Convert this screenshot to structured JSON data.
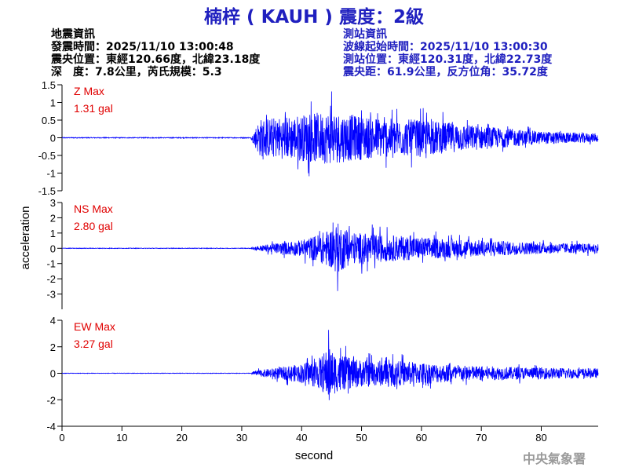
{
  "title": "楠梓 ( KAUH ) 震度：2級",
  "event_info": {
    "heading": "地震資訊",
    "origin_time": "發震時間：2025/11/10 13:00:48",
    "epicenter": "震央位置：東經120.66度，北緯23.18度",
    "depth_magnitude": "深　度：7.8公里，芮氏規模：5.3"
  },
  "station_info": {
    "heading": "測站資訊",
    "wave_start": "波線起始時間：2025/11/10 13:00:30",
    "location": "測站位置：東經120.31度，北緯22.73度",
    "distance": "震央距：61.9公里，反方位角：35.72度"
  },
  "footer": "中央氣象署",
  "colors": {
    "trace": "#0000ff",
    "max_label": "#e00000",
    "title": "#1f1fbf",
    "axis": "#000000"
  },
  "chart_data": {
    "type": "line",
    "xlabel": "second",
    "ylabel": "acceleration",
    "xlim": [
      0,
      89.5
    ],
    "xticks": [
      0,
      10,
      20,
      30,
      40,
      50,
      60,
      70,
      80
    ],
    "onset_s": 32,
    "panels": [
      {
        "name": "Z",
        "max_label": "Z Max",
        "max_value": "1.31 gal",
        "peak": 1.31,
        "ylim": [
          -1.5,
          1.5
        ],
        "yticks": [
          -1.5,
          -1,
          -0.5,
          0,
          0.5,
          1,
          1.5
        ],
        "ytick_labels": [
          "-1.5",
          "-1",
          "-0.5",
          "0",
          "0.5",
          "1",
          "1.5"
        ],
        "envelope": [
          [
            0,
            0.02
          ],
          [
            31.5,
            0.02
          ],
          [
            32,
            0.3
          ],
          [
            33,
            0.9
          ],
          [
            37,
            1.0
          ],
          [
            40,
            1.1
          ],
          [
            43,
            1.2
          ],
          [
            45,
            1.25
          ],
          [
            48,
            1.1
          ],
          [
            55,
            0.9
          ],
          [
            60,
            0.85
          ],
          [
            65,
            0.7
          ],
          [
            72,
            0.5
          ],
          [
            80,
            0.3
          ],
          [
            89.5,
            0.2
          ]
        ]
      },
      {
        "name": "NS",
        "max_label": "NS Max",
        "max_value": "2.80 gal",
        "peak": 2.8,
        "ylim": [
          -4,
          3
        ],
        "yticks": [
          -3,
          -2,
          -1,
          0,
          1,
          2,
          3
        ],
        "ytick_labels": [
          "-3",
          "-2",
          "-1",
          "0",
          "1",
          "2",
          "3"
        ],
        "envelope": [
          [
            0,
            0.03
          ],
          [
            31.5,
            0.03
          ],
          [
            32,
            0.2
          ],
          [
            35,
            0.5
          ],
          [
            40,
            0.9
          ],
          [
            43,
            1.6
          ],
          [
            45,
            2.2
          ],
          [
            46,
            2.8
          ],
          [
            48,
            1.8
          ],
          [
            53,
            1.5
          ],
          [
            58,
            1.3
          ],
          [
            63,
            1.1
          ],
          [
            70,
            0.9
          ],
          [
            80,
            0.6
          ],
          [
            89.5,
            0.5
          ]
        ]
      },
      {
        "name": "EW",
        "max_label": "EW Max",
        "max_value": "3.27 gal",
        "peak": 3.27,
        "ylim": [
          -4,
          4
        ],
        "yticks": [
          -4,
          -2,
          0,
          2,
          4
        ],
        "ytick_labels": [
          "-4",
          "-2",
          "0",
          "2",
          "4"
        ],
        "envelope": [
          [
            0,
            0.03
          ],
          [
            31.5,
            0.03
          ],
          [
            32,
            0.3
          ],
          [
            36,
            0.7
          ],
          [
            40,
            1.2
          ],
          [
            43,
            2.0
          ],
          [
            44.5,
            3.27
          ],
          [
            46,
            2.3
          ],
          [
            50,
            1.7
          ],
          [
            55,
            1.6
          ],
          [
            60,
            1.4
          ],
          [
            66,
            1.0
          ],
          [
            75,
            0.8
          ],
          [
            89.5,
            0.6
          ]
        ]
      }
    ]
  }
}
